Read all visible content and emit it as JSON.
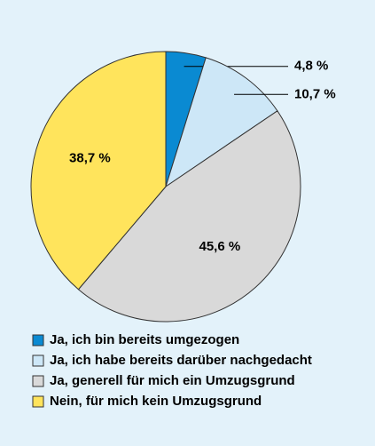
{
  "chart_data": {
    "type": "pie",
    "categories": [
      "Ja, ich bin bereits umgezogen",
      "Ja, ich habe bereits darüber nachgedacht",
      "Ja, generell für mich ein Umzugsgrund",
      "Nein, für mich kein Umzugsgrund"
    ],
    "values": [
      4.8,
      10.7,
      45.6,
      38.7
    ],
    "value_labels": [
      "4,8 %",
      "10,7 %",
      "45,6 %",
      "38,7 %"
    ],
    "colors": [
      "#0a8ad2",
      "#cde7f7",
      "#d9d9d9",
      "#ffe45c"
    ]
  }
}
